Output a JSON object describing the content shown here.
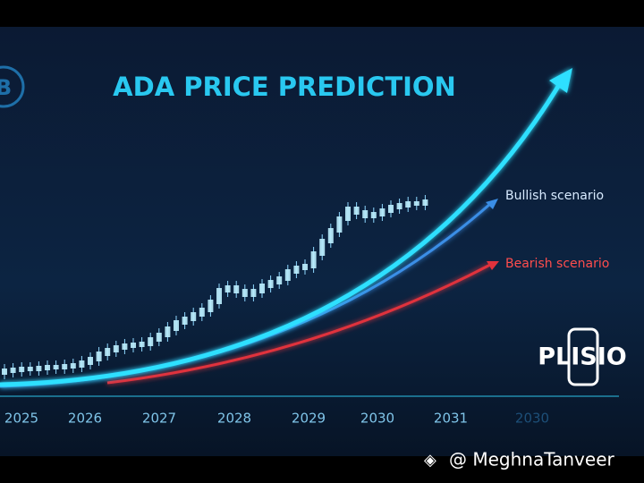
{
  "title": "ADA PRICE PREDICTION",
  "logo_letter": "B",
  "annotations": [
    "Bullish scenario",
    "Bearish scenario"
  ],
  "x_labels": [
    "2025",
    "2026",
    "2027",
    "2028",
    "2029",
    "2030",
    "2031",
    "2030"
  ],
  "brand": "PLISIO",
  "watermark": "@ MeghnaTanveer"
}
